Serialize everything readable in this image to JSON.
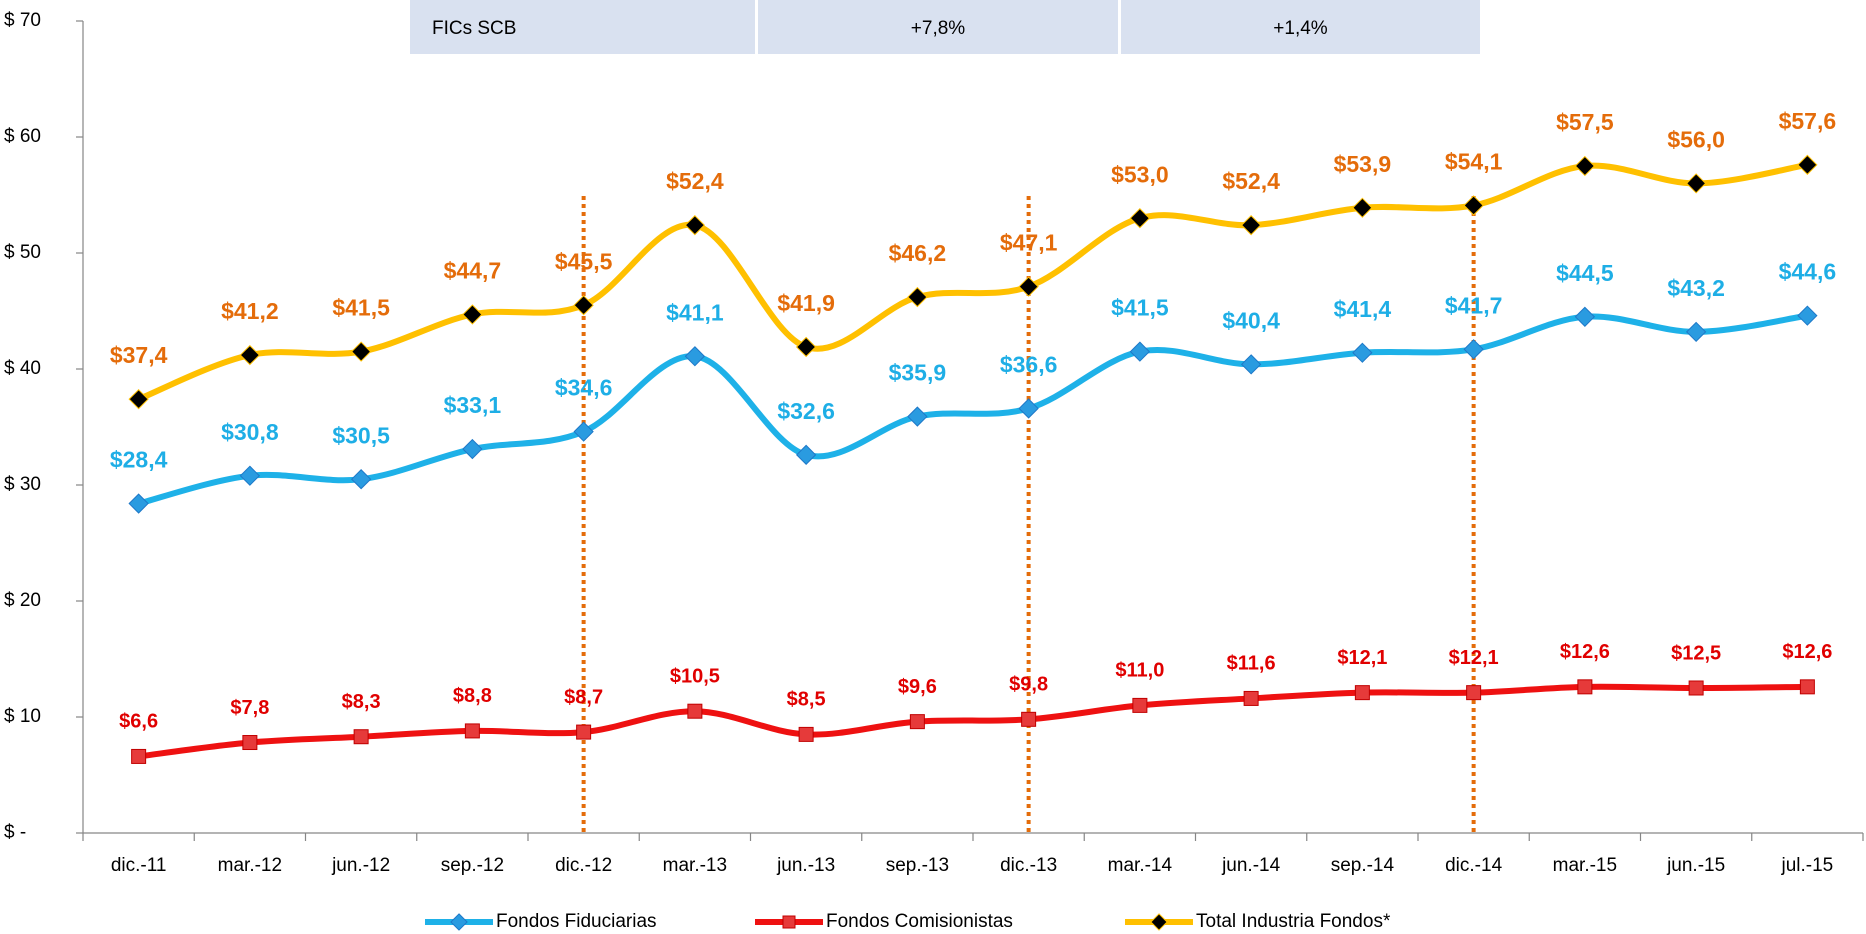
{
  "chart_data": {
    "type": "line",
    "header_table": [
      "FICs SCB",
      "+7,8%",
      "+1,4%"
    ],
    "categories": [
      "dic.-11",
      "mar.-12",
      "jun.-12",
      "sep.-12",
      "dic.-12",
      "mar.-13",
      "jun.-13",
      "sep.-13",
      "dic.-13",
      "mar.-14",
      "jun.-14",
      "sep.-14",
      "dic.-14",
      "mar.-15",
      "jun.-15",
      "jul.-15"
    ],
    "series": [
      {
        "name": "Fondos Fiduciarias",
        "color": "#1EB1E8",
        "label_color": "#1EAEE6",
        "marker": "diamond",
        "marker_color": "#2A9BE0",
        "values": [
          28.4,
          30.8,
          30.5,
          33.1,
          34.6,
          41.1,
          32.6,
          35.9,
          36.6,
          41.5,
          40.4,
          41.4,
          41.7,
          44.5,
          43.2,
          44.6
        ],
        "value_labels": [
          "$28,4",
          "$30,8",
          "$30,5",
          "$33,1",
          "$34,6",
          "$41,1",
          "$32,6",
          "$35,9",
          "$36,6",
          "$41,5",
          "$40,4",
          "$41,4",
          "$41,7",
          "$44,5",
          "$43,2",
          "$44,6"
        ]
      },
      {
        "name": "Fondos Comisionistas",
        "color": "#EE1111",
        "label_color": "#E00000",
        "marker": "square",
        "marker_color": "#E63A3A",
        "values": [
          6.6,
          7.8,
          8.3,
          8.8,
          8.7,
          10.5,
          8.5,
          9.6,
          9.8,
          11.0,
          11.6,
          12.1,
          12.1,
          12.6,
          12.5,
          12.6
        ],
        "value_labels": [
          "$6,6",
          "$7,8",
          "$8,3",
          "$8,8",
          "$8,7",
          "$10,5",
          "$8,5",
          "$9,6",
          "$9,8",
          "$11,0",
          "$11,6",
          "$12,1",
          "$12,1",
          "$12,6",
          "$12,5",
          "$12,6"
        ]
      },
      {
        "name": "Total Industria Fondos*",
        "color": "#FFC000",
        "label_color": "#E46C0A",
        "marker": "diamond",
        "marker_color": "#000000",
        "values": [
          37.4,
          41.2,
          41.5,
          44.7,
          45.5,
          52.4,
          41.9,
          46.2,
          47.1,
          53.0,
          52.4,
          53.9,
          54.1,
          57.5,
          56.0,
          57.6
        ],
        "value_labels": [
          "$37,4",
          "$41,2",
          "$41,5",
          "$44,7",
          "$45,5",
          "$52,4",
          "$41,9",
          "$46,2",
          "$47,1",
          "$53,0",
          "$52,4",
          "$53,9",
          "$54,1",
          "$57,5",
          "$56,0",
          "$57,6"
        ]
      }
    ],
    "ylim": [
      0,
      70
    ],
    "yticks": [
      {
        "value": 0,
        "label": "$ -"
      },
      {
        "value": 10,
        "label": "$ 10"
      },
      {
        "value": 20,
        "label": "$ 20"
      },
      {
        "value": 30,
        "label": "$ 30"
      },
      {
        "value": 40,
        "label": "$ 40"
      },
      {
        "value": 50,
        "label": "$ 50"
      },
      {
        "value": 60,
        "label": "$ 60"
      },
      {
        "value": 70,
        "label": "$ 70"
      }
    ],
    "grid": false,
    "legend": "bottom"
  }
}
